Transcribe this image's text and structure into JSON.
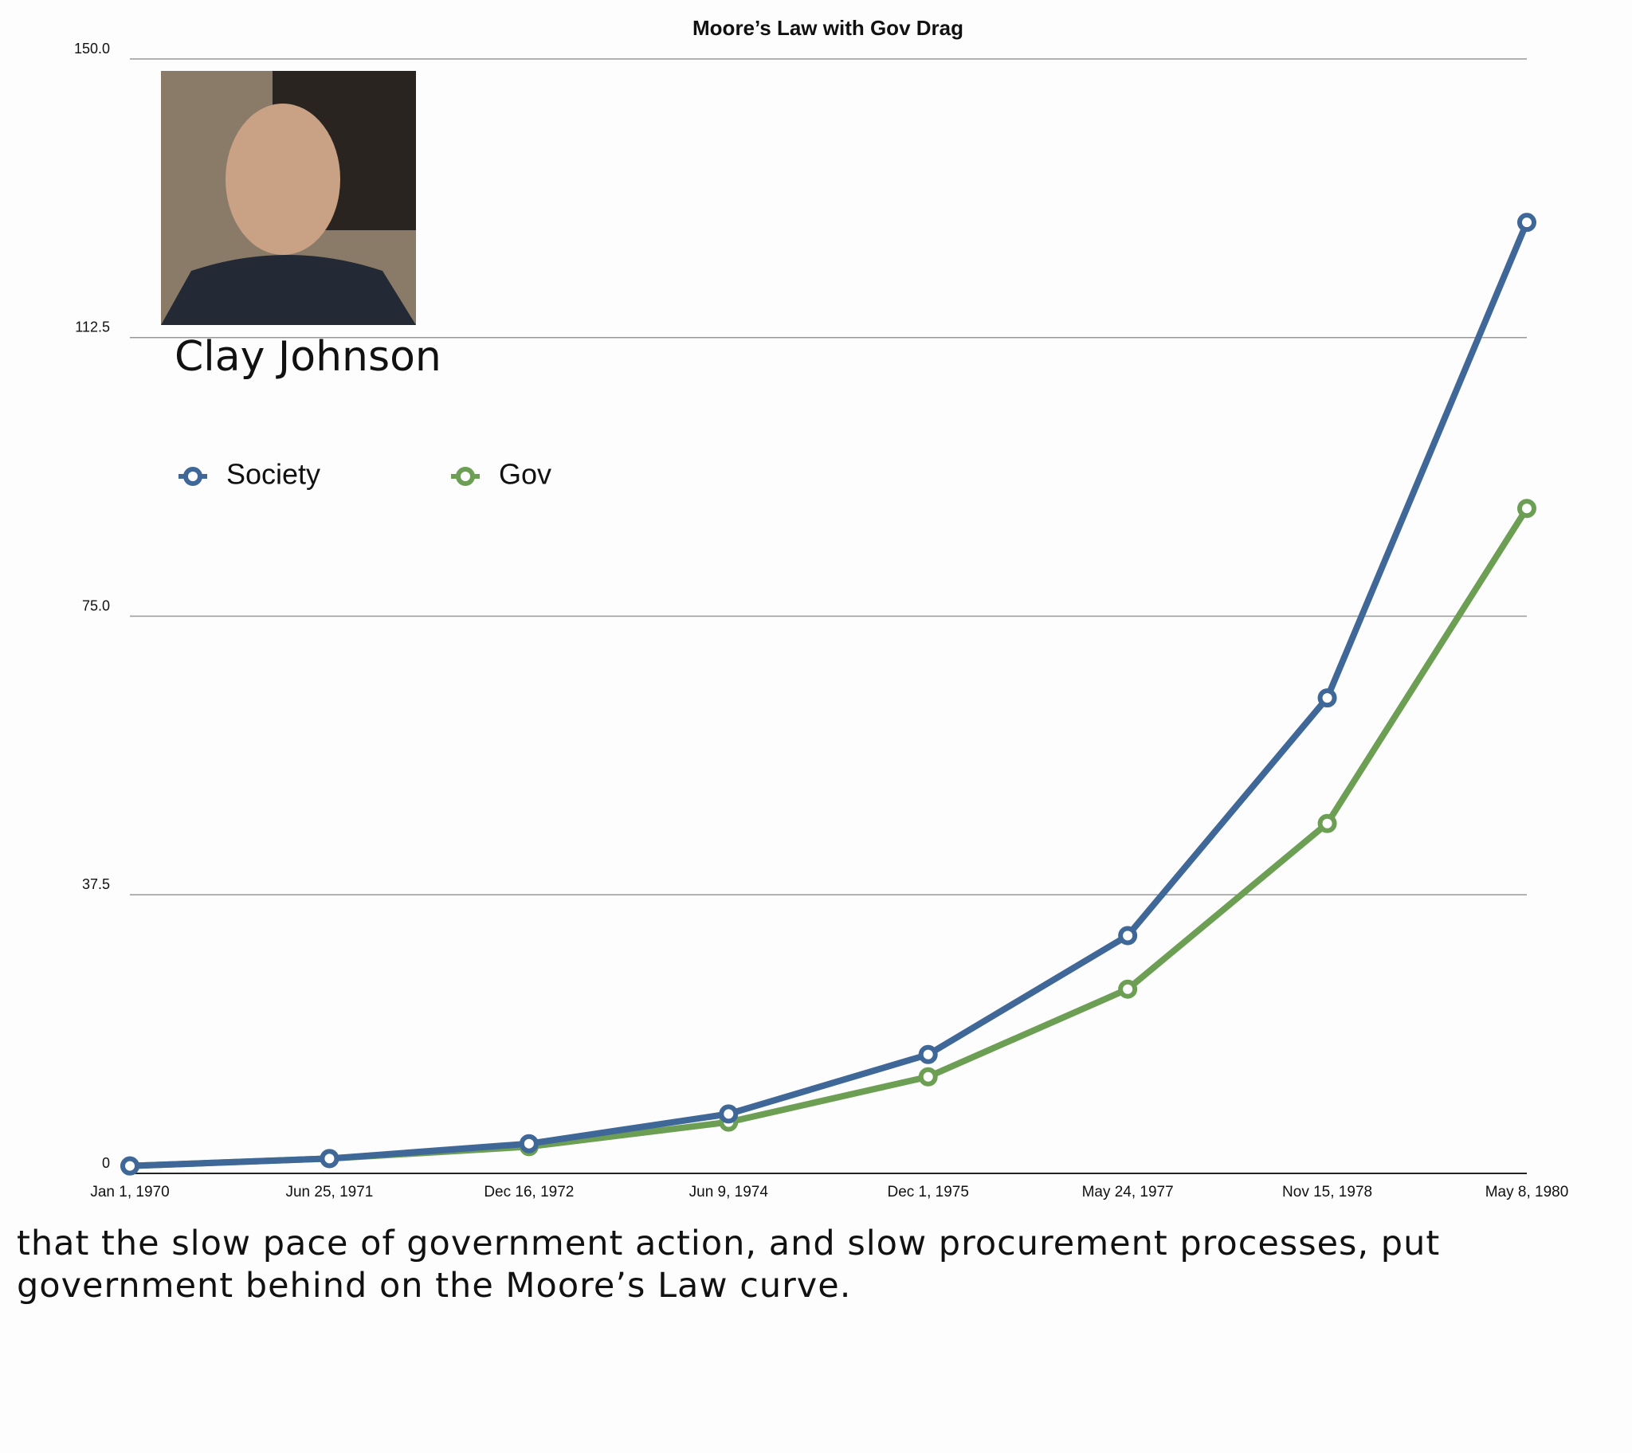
{
  "chart_data": {
    "type": "line",
    "title": "Moore’s Law with Gov Drag",
    "categories": [
      "Jan 1, 1970",
      "Jun 25, 1971",
      "Dec 16, 1972",
      "Jun 9, 1974",
      "Dec 1, 1975",
      "May 24, 1977",
      "Nov 15, 1978",
      "May 8, 1980"
    ],
    "series": [
      {
        "name": "Society",
        "color": "#3f6797",
        "values": [
          1,
          2,
          4,
          8,
          16,
          32,
          64,
          128
        ]
      },
      {
        "name": "Gov",
        "color": "#6c9f53",
        "values": [
          1,
          2,
          3.6,
          6.9,
          13,
          24.8,
          47.1,
          89.5
        ]
      }
    ],
    "ylim": [
      0,
      150
    ],
    "yticks": [
      0,
      37.5,
      {
        "value": 75,
        "label": "75.0"
      },
      112.5,
      {
        "value": 150,
        "label": "150.0"
      }
    ],
    "grid": true,
    "annotations": [
      "Clay Johnson"
    ]
  },
  "caption": "that the slow pace of government action, and slow procurement processes, put government behind on the Moore’s Law curve."
}
